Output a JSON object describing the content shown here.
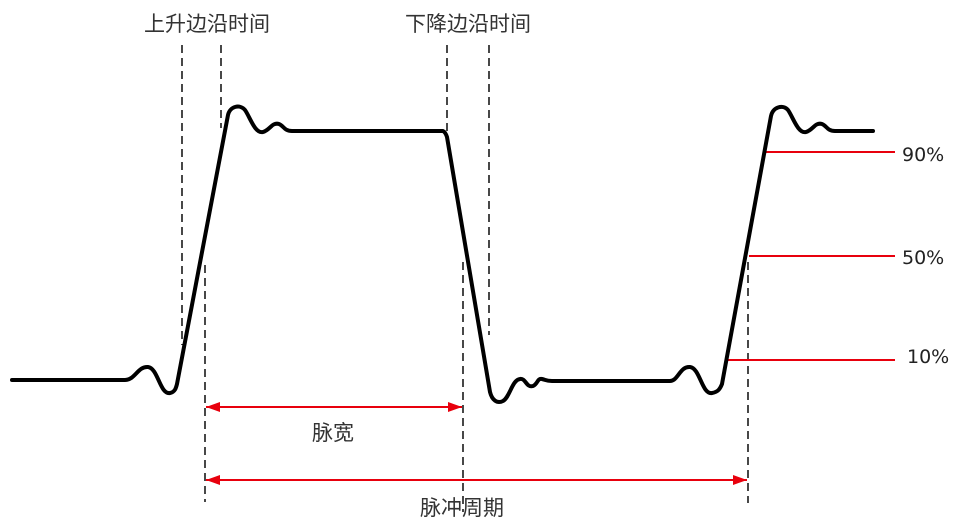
{
  "labels": {
    "rise_time": "上升边沿时间",
    "fall_time": "下降边沿时间",
    "pulse_width": "脉宽",
    "pulse_period": "脉冲周期",
    "level_90": "90%",
    "level_50": "50%",
    "level_10": "10%"
  },
  "colors": {
    "background": "#ffffff",
    "waveform": "#000000",
    "guide_lines": "#1a1a1a",
    "markers": "#e8000d",
    "text": "#333333"
  }
}
